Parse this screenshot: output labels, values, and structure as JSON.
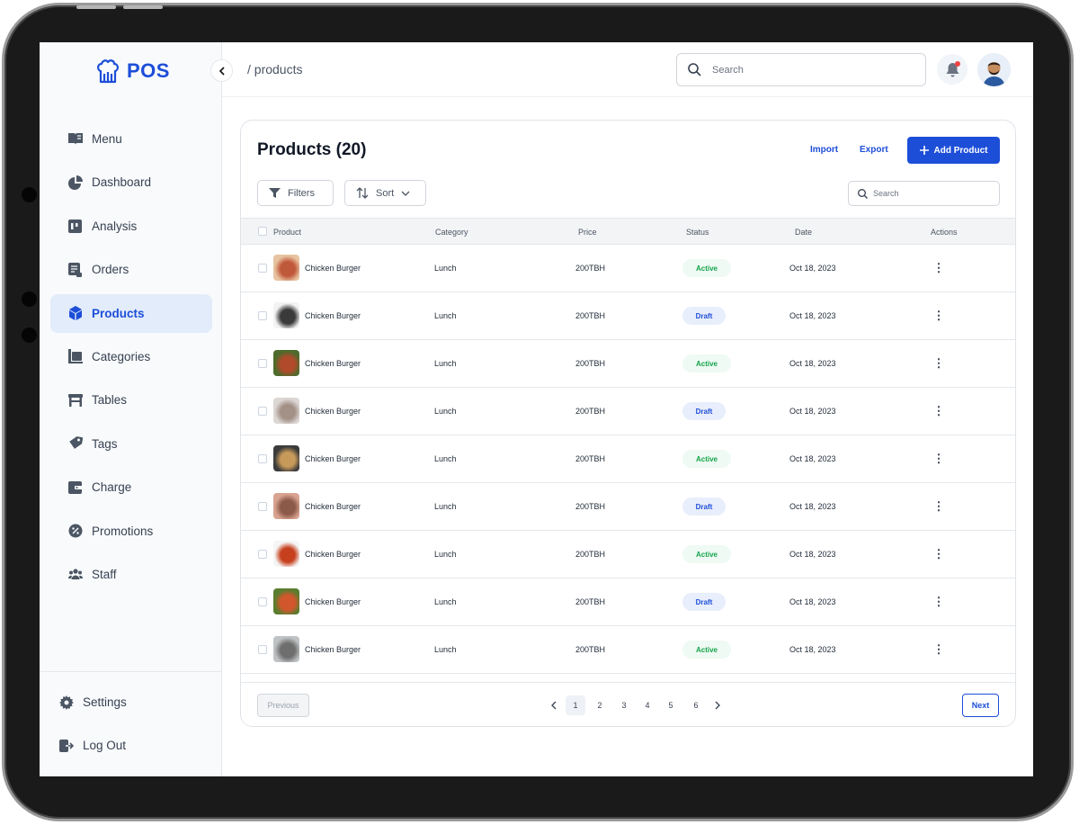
{
  "app": {
    "logo_text": "POS"
  },
  "breadcrumb": "/ products",
  "header": {
    "search_placeholder": "Search"
  },
  "sidebar": {
    "items": [
      {
        "label": "Menu",
        "icon": "menu-book-icon"
      },
      {
        "label": "Dashboard",
        "icon": "pie-chart-icon"
      },
      {
        "label": "Analysis",
        "icon": "analysis-icon"
      },
      {
        "label": "Orders",
        "icon": "orders-icon"
      },
      {
        "label": "Products",
        "icon": "cube-icon",
        "active": true
      },
      {
        "label": "Categories",
        "icon": "categories-icon"
      },
      {
        "label": "Tables",
        "icon": "table-icon"
      },
      {
        "label": "Tags",
        "icon": "tag-icon"
      },
      {
        "label": "Charge",
        "icon": "wallet-icon"
      },
      {
        "label": "Promotions",
        "icon": "promotion-badge-icon"
      },
      {
        "label": "Staff",
        "icon": "staff-icon"
      }
    ],
    "bottom": [
      {
        "label": "Settings",
        "icon": "gear-icon"
      },
      {
        "label": "Log Out",
        "icon": "logout-icon"
      }
    ]
  },
  "products": {
    "title": "Products (20)",
    "import_label": "Import",
    "export_label": "Export",
    "add_label": "Add Product",
    "filters_label": "Filters",
    "sort_label": "Sort",
    "search_placeholder": "Search",
    "columns": [
      "Product",
      "Category",
      "Price",
      "Status",
      "Date",
      "Actions"
    ],
    "rows": [
      {
        "name": "Chicken Burger",
        "category": "Lunch",
        "price": "200TBH",
        "status": "Active",
        "date": "Oct 18, 2023"
      },
      {
        "name": "Chicken Burger",
        "category": "Lunch",
        "price": "200TBH",
        "status": "Draft",
        "date": "Oct 18, 2023"
      },
      {
        "name": "Chicken Burger",
        "category": "Lunch",
        "price": "200TBH",
        "status": "Active",
        "date": "Oct 18, 2023"
      },
      {
        "name": "Chicken Burger",
        "category": "Lunch",
        "price": "200TBH",
        "status": "Draft",
        "date": "Oct 18, 2023"
      },
      {
        "name": "Chicken Burger",
        "category": "Lunch",
        "price": "200TBH",
        "status": "Active",
        "date": "Oct 18, 2023"
      },
      {
        "name": "Chicken Burger",
        "category": "Lunch",
        "price": "200TBH",
        "status": "Draft",
        "date": "Oct 18, 2023"
      },
      {
        "name": "Chicken Burger",
        "category": "Lunch",
        "price": "200TBH",
        "status": "Active",
        "date": "Oct 18, 2023"
      },
      {
        "name": "Chicken Burger",
        "category": "Lunch",
        "price": "200TBH",
        "status": "Draft",
        "date": "Oct 18, 2023"
      },
      {
        "name": "Chicken Burger",
        "category": "Lunch",
        "price": "200TBH",
        "status": "Active",
        "date": "Oct 18, 2023"
      }
    ],
    "thumb_colors": [
      [
        "#e8c3a0",
        "#c0583a"
      ],
      [
        "#f3f3f3",
        "#3a3a3a"
      ],
      [
        "#4d6b2c",
        "#b04a2a"
      ],
      [
        "#dcd7d4",
        "#a39087"
      ],
      [
        "#3b3b3b",
        "#c89a5a"
      ],
      [
        "#d9a391",
        "#8c5a48"
      ],
      [
        "#f5f5f5",
        "#c7401e"
      ],
      [
        "#5a7d2f",
        "#d2572c"
      ],
      [
        "#bfc2c4",
        "#6e6e6e"
      ]
    ]
  },
  "pagination": {
    "previous_label": "Previous",
    "next_label": "Next",
    "pages": [
      "1",
      "2",
      "3",
      "4",
      "5",
      "6"
    ],
    "current_page": "1"
  },
  "colors": {
    "accent": "#1d4ed8",
    "active_status": "#16a34a",
    "notification_dot": "#ef4444"
  }
}
